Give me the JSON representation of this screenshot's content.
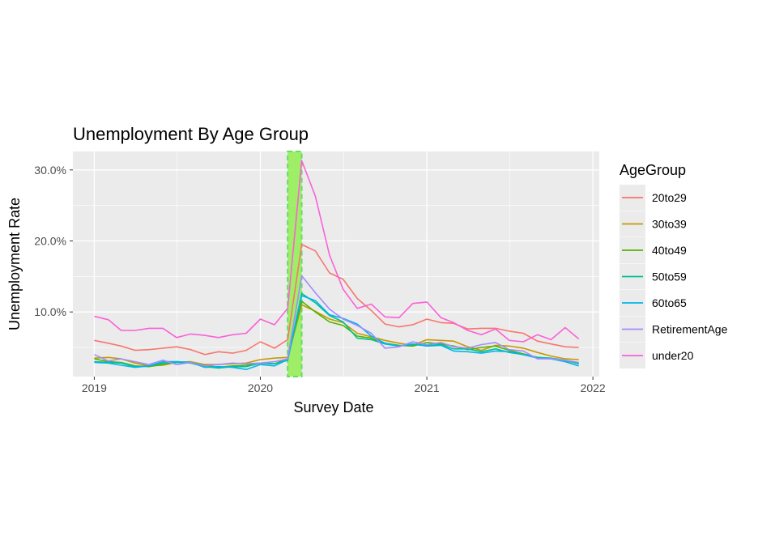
{
  "chart_data": {
    "type": "line",
    "title": "Unemployment By Age Group",
    "xlabel": "Survey Date",
    "ylabel": "Unemployment Rate",
    "x_ticks": [
      "2019",
      "2020",
      "2021",
      "2022"
    ],
    "y_ticks": [
      "10.0%",
      "20.0%",
      "30.0%"
    ],
    "y_tick_values": [
      10,
      20,
      30
    ],
    "xlim": [
      "2018-11-15",
      "2022-01-15"
    ],
    "ylim": [
      0.9,
      32.6
    ],
    "grid": true,
    "legend_title": "AgeGroup",
    "legend_position": "right",
    "highlight_band": {
      "start": "2020-03-01",
      "end": "2020-04-01",
      "color": "#90EE50",
      "border_color": "#66DD66"
    },
    "x": [
      "2019-01-01",
      "2019-02-01",
      "2019-03-01",
      "2019-04-01",
      "2019-05-01",
      "2019-06-01",
      "2019-07-01",
      "2019-08-01",
      "2019-09-01",
      "2019-10-01",
      "2019-11-01",
      "2019-12-01",
      "2020-01-01",
      "2020-02-01",
      "2020-03-01",
      "2020-04-01",
      "2020-05-01",
      "2020-06-01",
      "2020-07-01",
      "2020-08-01",
      "2020-09-01",
      "2020-10-01",
      "2020-11-01",
      "2020-12-01",
      "2021-01-01",
      "2021-02-01",
      "2021-03-01",
      "2021-04-01",
      "2021-05-01",
      "2021-06-01",
      "2021-07-01",
      "2021-08-01",
      "2021-09-01",
      "2021-10-01",
      "2021-11-01",
      "2021-12-01"
    ],
    "series": [
      {
        "name": "20to29",
        "color": "#F8766D",
        "values": [
          6.0,
          5.6,
          5.2,
          4.6,
          4.7,
          4.9,
          5.1,
          4.7,
          4.0,
          4.4,
          4.2,
          4.6,
          5.8,
          4.9,
          6.1,
          19.5,
          18.6,
          15.5,
          14.6,
          11.9,
          10.2,
          8.3,
          7.9,
          8.2,
          9.0,
          8.5,
          8.4,
          7.6,
          7.7,
          7.7,
          7.3,
          7.0,
          5.9,
          5.5,
          5.1,
          5.0
        ]
      },
      {
        "name": "30to39",
        "color": "#C49A00",
        "values": [
          3.5,
          3.6,
          3.4,
          2.8,
          2.4,
          2.5,
          2.9,
          3.0,
          2.6,
          2.6,
          2.7,
          2.8,
          3.3,
          3.5,
          3.6,
          11.0,
          10.1,
          9.0,
          8.5,
          7.0,
          6.5,
          6.0,
          5.6,
          5.3,
          6.1,
          6.0,
          5.9,
          5.1,
          4.6,
          5.3,
          5.2,
          4.9,
          4.3,
          3.8,
          3.4,
          3.3
        ]
      },
      {
        "name": "40to49",
        "color": "#53B400",
        "values": [
          3.4,
          3.0,
          2.9,
          2.4,
          2.3,
          2.6,
          3.0,
          2.9,
          2.5,
          2.2,
          2.4,
          2.5,
          2.8,
          2.7,
          3.4,
          11.5,
          10.0,
          8.6,
          8.1,
          6.6,
          6.3,
          5.6,
          5.3,
          5.2,
          5.7,
          5.5,
          5.2,
          4.7,
          5.0,
          5.2,
          4.6,
          4.1,
          3.6,
          3.4,
          3.1,
          2.8
        ]
      },
      {
        "name": "50to59",
        "color": "#00C094",
        "values": [
          3.0,
          2.9,
          2.8,
          2.3,
          2.4,
          2.8,
          2.9,
          2.8,
          2.3,
          2.1,
          2.3,
          2.3,
          2.8,
          2.7,
          3.2,
          12.6,
          11.3,
          9.5,
          8.6,
          6.3,
          6.1,
          5.5,
          5.2,
          5.4,
          5.3,
          5.4,
          4.8,
          4.8,
          4.4,
          4.8,
          4.3,
          4.0,
          3.6,
          3.5,
          3.2,
          2.7
        ]
      },
      {
        "name": "60to65",
        "color": "#00B6EB",
        "values": [
          2.9,
          2.8,
          2.5,
          2.2,
          2.4,
          3.0,
          3.0,
          2.9,
          2.2,
          2.3,
          2.2,
          1.9,
          2.6,
          2.4,
          3.3,
          12.3,
          11.6,
          9.6,
          9.1,
          8.3,
          6.6,
          5.6,
          5.2,
          5.5,
          5.2,
          5.3,
          4.5,
          4.4,
          4.2,
          4.5,
          4.4,
          4.0,
          3.5,
          3.4,
          3.0,
          2.4
        ]
      },
      {
        "name": "RetirementAge",
        "color": "#A58AFF",
        "values": [
          4.0,
          3.1,
          3.4,
          3.0,
          2.6,
          3.2,
          2.6,
          2.9,
          2.4,
          2.6,
          2.8,
          2.7,
          2.8,
          3.0,
          3.4,
          15.1,
          12.7,
          10.4,
          9.0,
          8.1,
          7.0,
          4.9,
          5.1,
          5.8,
          5.4,
          5.7,
          5.1,
          4.9,
          5.4,
          5.7,
          4.7,
          4.5,
          3.4,
          3.4,
          3.2,
          2.9
        ]
      },
      {
        "name": "under20",
        "color": "#FB61D7",
        "values": [
          9.4,
          8.9,
          7.4,
          7.4,
          7.7,
          7.7,
          6.4,
          6.9,
          6.7,
          6.4,
          6.8,
          7.0,
          9.0,
          8.2,
          10.5,
          31.3,
          26.3,
          18.0,
          13.2,
          10.5,
          11.1,
          9.3,
          9.2,
          11.2,
          11.4,
          9.2,
          8.5,
          7.4,
          6.8,
          7.6,
          6.0,
          5.8,
          6.8,
          6.1,
          7.8,
          6.2
        ]
      }
    ]
  }
}
